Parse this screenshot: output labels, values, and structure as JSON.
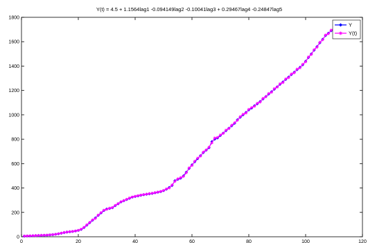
{
  "chart_data": {
    "type": "line",
    "title": "Y(t) = 4.5 + 1.1564lag1   -0.094149lag2   -0.10041lag3 + 0.29467lag4   -0.24847lag5",
    "xlabel": "",
    "ylabel": "",
    "xlim": [
      0,
      120
    ],
    "ylim": [
      0,
      1800
    ],
    "xticks": [
      0,
      20,
      40,
      60,
      80,
      100,
      120
    ],
    "yticks": [
      0,
      200,
      400,
      600,
      800,
      1000,
      1200,
      1400,
      1600,
      1800
    ],
    "grid": false,
    "legend_position": "top-right",
    "series": [
      {
        "name": "Y",
        "color": "#0000ff",
        "marker": "diamond",
        "x": [
          1,
          2,
          3,
          4,
          5,
          6,
          7,
          8,
          9,
          10,
          11,
          12,
          13,
          14,
          15,
          16,
          17,
          18,
          19,
          20,
          21,
          22,
          23,
          24,
          25,
          26,
          27,
          28,
          29,
          30,
          31,
          32,
          33,
          34,
          35,
          36,
          37,
          38,
          39,
          40,
          41,
          42,
          43,
          44,
          45,
          46,
          47,
          48,
          49,
          50,
          51,
          52,
          53,
          54,
          55,
          56,
          57,
          58,
          59,
          60,
          61,
          62,
          63,
          64,
          65,
          66,
          67,
          68,
          69,
          70,
          71,
          72,
          73,
          74,
          75,
          76,
          77,
          78,
          79,
          80,
          81,
          82,
          83,
          84,
          85,
          86,
          87,
          88,
          89,
          90,
          91,
          92,
          93,
          94,
          95,
          96,
          97,
          98,
          99,
          100,
          101,
          102,
          103,
          104,
          105,
          106,
          107,
          108,
          109,
          110
        ],
        "values": [
          5,
          6,
          7,
          8,
          9,
          10,
          11,
          12,
          13,
          15,
          17,
          20,
          24,
          29,
          34,
          38,
          41,
          43,
          47,
          52,
          60,
          75,
          95,
          115,
          135,
          155,
          175,
          195,
          215,
          228,
          232,
          238,
          255,
          270,
          285,
          295,
          305,
          315,
          325,
          330,
          335,
          340,
          345,
          348,
          352,
          355,
          360,
          365,
          370,
          378,
          390,
          405,
          420,
          460,
          470,
          480,
          500,
          530,
          560,
          590,
          615,
          640,
          665,
          690,
          710,
          730,
          780,
          800,
          810,
          830,
          850,
          870,
          890,
          910,
          930,
          960,
          980,
          1000,
          1020,
          1040,
          1055,
          1075,
          1090,
          1110,
          1130,
          1150,
          1170,
          1190,
          1210,
          1230,
          1250,
          1270,
          1290,
          1310,
          1330,
          1350,
          1370,
          1390,
          1410,
          1440,
          1470,
          1500,
          1530,
          1560,
          1590,
          1620,
          1650,
          1670,
          1690,
          1710
        ]
      },
      {
        "name": "Y(t)",
        "color": "#ff00ff",
        "marker": "star",
        "x": [
          1,
          2,
          3,
          4,
          5,
          6,
          7,
          8,
          9,
          10,
          11,
          12,
          13,
          14,
          15,
          16,
          17,
          18,
          19,
          20,
          21,
          22,
          23,
          24,
          25,
          26,
          27,
          28,
          29,
          30,
          31,
          32,
          33,
          34,
          35,
          36,
          37,
          38,
          39,
          40,
          41,
          42,
          43,
          44,
          45,
          46,
          47,
          48,
          49,
          50,
          51,
          52,
          53,
          54,
          55,
          56,
          57,
          58,
          59,
          60,
          61,
          62,
          63,
          64,
          65,
          66,
          67,
          68,
          69,
          70,
          71,
          72,
          73,
          74,
          75,
          76,
          77,
          78,
          79,
          80,
          81,
          82,
          83,
          84,
          85,
          86,
          87,
          88,
          89,
          90,
          91,
          92,
          93,
          94,
          95,
          96,
          97,
          98,
          99,
          100,
          101,
          102,
          103,
          104,
          105,
          106,
          107,
          108,
          109,
          110
        ],
        "values": [
          6,
          7,
          8,
          9,
          10,
          11,
          12,
          13,
          14,
          16,
          18,
          21,
          25,
          30,
          35,
          39,
          42,
          44,
          48,
          53,
          62,
          78,
          98,
          118,
          138,
          150,
          178,
          198,
          218,
          225,
          235,
          240,
          258,
          272,
          287,
          297,
          307,
          318,
          326,
          332,
          337,
          342,
          346,
          350,
          354,
          357,
          362,
          367,
          372,
          380,
          392,
          400,
          425,
          455,
          475,
          485,
          495,
          525,
          565,
          585,
          620,
          645,
          662,
          695,
          712,
          735,
          770,
          810,
          815,
          835,
          848,
          875,
          888,
          915,
          935,
          955,
          985,
          1005,
          1015,
          1045,
          1060,
          1070,
          1095,
          1105,
          1135,
          1148,
          1175,
          1185,
          1215,
          1228,
          1255,
          1265,
          1295,
          1305,
          1335,
          1345,
          1375,
          1385,
          1415,
          1435,
          1475,
          1495,
          1535,
          1555,
          1595,
          1615,
          1655,
          1665,
          1695,
          1705
        ]
      }
    ]
  }
}
